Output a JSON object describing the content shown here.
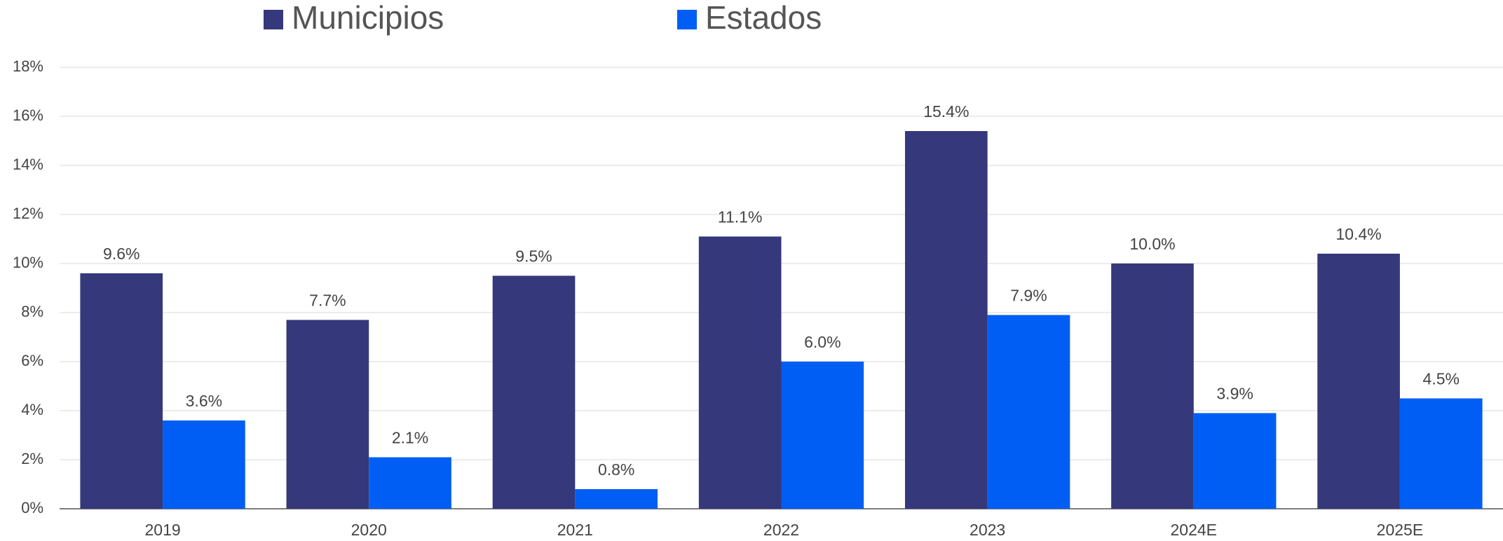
{
  "chart_data": {
    "type": "bar",
    "categories": [
      "2019",
      "2020",
      "2021",
      "2022",
      "2023",
      "2024E",
      "2025E"
    ],
    "series": [
      {
        "name": "Municipios",
        "color": "#35387a",
        "values": [
          9.6,
          7.7,
          9.5,
          11.1,
          15.4,
          10.0,
          10.4
        ],
        "value_labels": [
          "9.6%",
          "7.7%",
          "9.5%",
          "11.1%",
          "15.4%",
          "10.0%",
          "10.4%"
        ]
      },
      {
        "name": "Estados",
        "color": "#005ef5",
        "values": [
          3.6,
          2.1,
          0.8,
          6.0,
          7.9,
          3.9,
          4.5
        ],
        "value_labels": [
          "3.6%",
          "2.1%",
          "0.8%",
          "6.0%",
          "7.9%",
          "3.9%",
          "4.5%"
        ]
      }
    ],
    "ylim": [
      0,
      18
    ],
    "yticks": [
      {
        "value": 0,
        "label": "0%"
      },
      {
        "value": 2,
        "label": "2%"
      },
      {
        "value": 4,
        "label": "4%"
      },
      {
        "value": 6,
        "label": "6%"
      },
      {
        "value": 8,
        "label": "8%"
      },
      {
        "value": 10,
        "label": "10%"
      },
      {
        "value": 12,
        "label": "12%"
      },
      {
        "value": 14,
        "label": "14%"
      },
      {
        "value": 16,
        "label": "16%"
      },
      {
        "value": 18,
        "label": "18%"
      }
    ],
    "grid": true,
    "legend": "top"
  }
}
